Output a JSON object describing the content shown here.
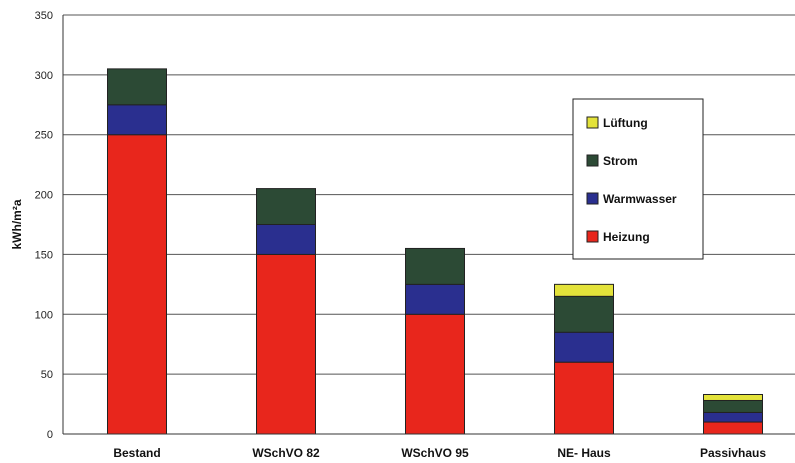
{
  "chart_data": {
    "type": "bar",
    "stacked": true,
    "ylabel": "kWh/m²a",
    "xlabel": "",
    "ylim": [
      0,
      350
    ],
    "yticks": [
      0,
      50,
      100,
      150,
      200,
      250,
      300,
      350
    ],
    "grid": "horizontal",
    "legend_position": "right",
    "categories": [
      "Bestand",
      "WSchVO 82",
      "WSchVO 95",
      "NE- Haus",
      "Passivhaus"
    ],
    "series": [
      {
        "name": "Heizung",
        "color": "#e8261c",
        "values": [
          250,
          150,
          100,
          60,
          10
        ]
      },
      {
        "name": "Warmwasser",
        "color": "#2a2f8f",
        "values": [
          25,
          25,
          25,
          25,
          8
        ]
      },
      {
        "name": "Strom",
        "color": "#2c4a35",
        "values": [
          30,
          30,
          30,
          30,
          10
        ]
      },
      {
        "name": "Lüftung",
        "color": "#e3e23a",
        "values": [
          0,
          0,
          0,
          10,
          5
        ]
      }
    ],
    "legend_order": [
      "Lüftung",
      "Strom",
      "Warmwasser",
      "Heizung"
    ]
  }
}
